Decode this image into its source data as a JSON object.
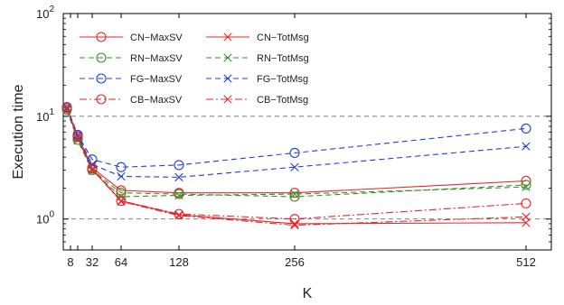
{
  "chart_data": {
    "type": "line",
    "xlabel": "K",
    "ylabel": "Execution time",
    "yscale": "log",
    "ylim": [
      0.5,
      100
    ],
    "xlim": [
      0,
      540
    ],
    "xticks": [
      8,
      16,
      32,
      64,
      128,
      256,
      512
    ],
    "xtick_labels": [
      "8",
      "",
      "32",
      "64",
      "128",
      "256",
      "512"
    ],
    "yticks": [
      1,
      10,
      100
    ],
    "grid": "horizontal dashed at 1, 10, 100",
    "legend_position": "top-left",
    "x": [
      4,
      16,
      32,
      64,
      128,
      256,
      512
    ],
    "series": [
      {
        "name": "CN−MaxSV",
        "color": "#e8262a",
        "linestyle": "solid",
        "marker": "circle",
        "values": [
          12.0,
          6.4,
          3.15,
          1.9,
          1.8,
          1.8,
          2.35
        ]
      },
      {
        "name": "CN−TotMsg",
        "color": "#e8262a",
        "linestyle": "solid",
        "marker": "x",
        "values": [
          11.8,
          6.1,
          3.05,
          1.5,
          1.1,
          0.9,
          0.92
        ]
      },
      {
        "name": "RN−MaxSV",
        "color": "#3b8e2e",
        "linestyle": "dashed",
        "marker": "circle",
        "values": [
          11.6,
          5.9,
          3.0,
          1.8,
          1.75,
          1.65,
          2.15
        ]
      },
      {
        "name": "RN−TotMsg",
        "color": "#3b8e2e",
        "linestyle": "dashed",
        "marker": "x",
        "values": [
          11.5,
          5.8,
          2.95,
          1.65,
          1.7,
          1.75,
          2.05
        ]
      },
      {
        "name": "FG−MaxSV",
        "color": "#1f3fd6",
        "linestyle": "dashed",
        "marker": "circle",
        "values": [
          12.3,
          6.6,
          3.8,
          3.2,
          3.35,
          4.4,
          7.6
        ]
      },
      {
        "name": "FG−TotMsg",
        "color": "#1f3fd6",
        "linestyle": "dashed",
        "marker": "x",
        "values": [
          12.2,
          6.5,
          3.4,
          2.6,
          2.55,
          3.2,
          5.1
        ]
      },
      {
        "name": "CB−MaxSV",
        "color": "#e8262a",
        "linestyle": "dashdot",
        "marker": "circle",
        "values": [
          12.1,
          6.3,
          3.1,
          1.5,
          1.12,
          1.0,
          1.42
        ]
      },
      {
        "name": "CB−TotMsg",
        "color": "#e8262a",
        "linestyle": "dashdot",
        "marker": "x",
        "values": [
          12.0,
          6.2,
          3.05,
          1.48,
          1.08,
          0.87,
          1.05
        ]
      }
    ],
    "legend_order": [
      [
        "CN−MaxSV",
        "CN−TotMsg"
      ],
      [
        "RN−MaxSV",
        "RN−TotMsg"
      ],
      [
        "FG−MaxSV",
        "FG−TotMsg"
      ],
      [
        "CB−MaxSV",
        "CB−TotMsg"
      ]
    ]
  }
}
